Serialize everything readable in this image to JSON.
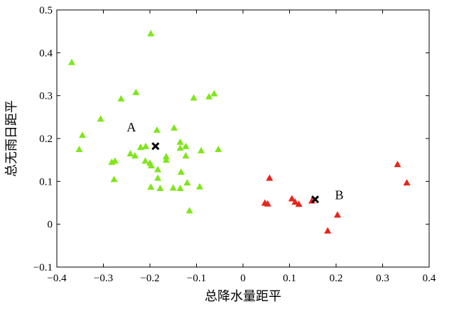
{
  "chart_data": {
    "type": "scatter",
    "xlabel": "总降水量距平",
    "ylabel": "总无雨日距平",
    "xlim": [
      -0.4,
      0.4
    ],
    "ylim": [
      -0.1,
      0.5
    ],
    "xticks": [
      -0.4,
      -0.3,
      -0.2,
      -0.1,
      0,
      0.1,
      0.2,
      0.3,
      0.4
    ],
    "xtick_labels": [
      "−0.4",
      "−0.3",
      "−0.2",
      "−0.1",
      "0",
      "0.1",
      "0.2",
      "0.3",
      "0.4"
    ],
    "yticks": [
      -0.1,
      0,
      0.1,
      0.2,
      0.3,
      0.4,
      0.5
    ],
    "ytick_labels": [
      "−0.1",
      "0",
      "0.1",
      "0.2",
      "0.3",
      "0.4",
      "0.5"
    ],
    "grid": false,
    "series": [
      {
        "color": "#7fe61a",
        "marker": "triangle",
        "points": [
          [
            -0.198,
            0.445
          ],
          [
            -0.368,
            0.378
          ],
          [
            -0.23,
            0.308
          ],
          [
            -0.262,
            0.293
          ],
          [
            -0.106,
            0.295
          ],
          [
            -0.073,
            0.298
          ],
          [
            -0.062,
            0.305
          ],
          [
            -0.306,
            0.246
          ],
          [
            -0.148,
            0.225
          ],
          [
            -0.185,
            0.22
          ],
          [
            -0.345,
            0.208
          ],
          [
            -0.135,
            0.192
          ],
          [
            -0.135,
            0.178
          ],
          [
            -0.123,
            0.182
          ],
          [
            -0.09,
            0.172
          ],
          [
            -0.053,
            0.175
          ],
          [
            -0.352,
            0.175
          ],
          [
            -0.209,
            0.182
          ],
          [
            -0.22,
            0.18
          ],
          [
            -0.242,
            0.165
          ],
          [
            -0.232,
            0.16
          ],
          [
            -0.123,
            0.16
          ],
          [
            -0.165,
            0.15
          ],
          [
            -0.165,
            0.158
          ],
          [
            -0.21,
            0.148
          ],
          [
            -0.2,
            0.143
          ],
          [
            -0.197,
            0.137
          ],
          [
            -0.275,
            0.148
          ],
          [
            -0.282,
            0.145
          ],
          [
            -0.183,
            0.128
          ],
          [
            -0.133,
            0.122
          ],
          [
            -0.277,
            0.105
          ],
          [
            -0.183,
            0.108
          ],
          [
            -0.12,
            0.097
          ],
          [
            -0.093,
            0.088
          ],
          [
            -0.198,
            0.087
          ],
          [
            -0.178,
            0.084
          ],
          [
            -0.15,
            0.085
          ],
          [
            -0.135,
            0.084
          ],
          [
            -0.115,
            0.032
          ]
        ]
      },
      {
        "color": "#e8241b",
        "marker": "triangle",
        "points": [
          [
            0.332,
            0.14
          ],
          [
            0.352,
            0.097
          ],
          [
            0.057,
            0.108
          ],
          [
            0.105,
            0.06
          ],
          [
            0.112,
            0.052
          ],
          [
            0.12,
            0.047
          ],
          [
            0.047,
            0.05
          ],
          [
            0.053,
            0.048
          ],
          [
            0.148,
            0.055
          ],
          [
            0.203,
            0.022
          ],
          [
            0.182,
            -0.015
          ]
        ]
      }
    ],
    "centroids": [
      {
        "label": "A",
        "x": -0.188,
        "y": 0.182
      },
      {
        "label": "B",
        "x": 0.155,
        "y": 0.058
      }
    ]
  }
}
